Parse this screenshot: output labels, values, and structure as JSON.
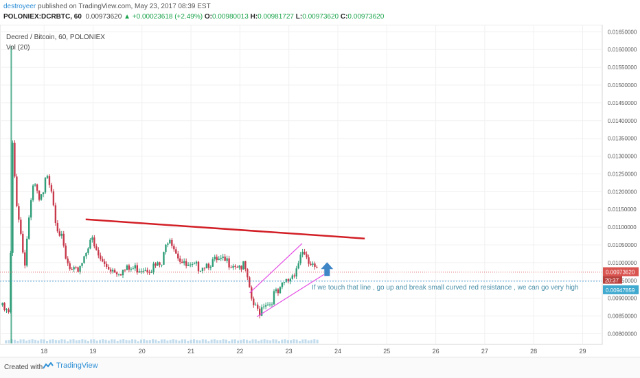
{
  "header": {
    "author": "destroyeer",
    "published": "published on TradingView.com, May 23, 2017 08:39 EST",
    "symbol": "POLONIEX:DCRBTC, 60",
    "price": "0.00973620",
    "change": "▲ +0.00023618 (+2.49%)",
    "o_label": "O:",
    "o_val": "0.00980013",
    "h_label": "H:",
    "h_val": "0.00981727",
    "l_label": "L:",
    "l_val": "0.00973620",
    "c_label": "C:",
    "c_val": "0.00973620"
  },
  "legend": {
    "title": "Decred / Bitcoin, 60, POLONIEX",
    "volume": "Vol (20)"
  },
  "colors": {
    "up": "#2e9d78",
    "down": "#c7384b",
    "resistance": "#d21f26",
    "channel": "#e44ce4",
    "arrow": "#3f86c7",
    "price_line": "#e05050",
    "support_line": "#4ea0d6",
    "price_label_bg": "#d9534f",
    "support_label_bg": "#3fa9cf"
  },
  "chart_data": {
    "type": "candlestick",
    "x_ticks": [
      "18",
      "19",
      "20",
      "21",
      "22",
      "23",
      "24",
      "25",
      "26",
      "27",
      "28",
      "29"
    ],
    "y_ticks": [
      "0.00800000",
      "0.00850000",
      "0.00900000",
      "0.00950000",
      "0.01000000",
      "0.01050000",
      "0.01100000",
      "0.01150000",
      "0.01200000",
      "0.01250000",
      "0.01300000",
      "0.01350000",
      "0.01400000",
      "0.01450000",
      "0.01500000",
      "0.01550000",
      "0.01600000",
      "0.01650000"
    ],
    "ylim": [
      0.0077,
      0.0167
    ],
    "xlim": [
      17.1,
      29.4
    ],
    "price_label": "0.00973620",
    "countdown": "20:37",
    "support_label": "0.00947859",
    "support_level": 0.00947859,
    "current_level": 0.0097362,
    "annotation": "If we touch that line , go up and break small curved red resistance , we can go very high",
    "resistance_line": [
      [
        18.85,
        0.01122
      ],
      [
        24.55,
        0.01068
      ]
    ],
    "channel_lower": [
      [
        22.35,
        0.00848
      ],
      [
        23.72,
        0.00967
      ]
    ],
    "channel_upper": [
      [
        22.2,
        0.00915
      ],
      [
        23.27,
        0.01054
      ]
    ],
    "arrow_at": [
      23.78,
      0.00978
    ],
    "anchors": [
      [
        17.15,
        0.0088
      ],
      [
        17.25,
        0.00865
      ],
      [
        17.3,
        0.0086
      ],
      [
        17.33,
        0.0116
      ],
      [
        17.36,
        0.01345
      ],
      [
        17.42,
        0.012
      ],
      [
        17.5,
        0.0112
      ],
      [
        17.6,
        0.01
      ],
      [
        17.7,
        0.0115
      ],
      [
        17.8,
        0.0123
      ],
      [
        17.9,
        0.0118
      ],
      [
        18.0,
        0.012
      ],
      [
        18.05,
        0.0127
      ],
      [
        18.15,
        0.0122
      ],
      [
        18.25,
        0.0112
      ],
      [
        18.35,
        0.0108
      ],
      [
        18.45,
        0.0101
      ],
      [
        18.55,
        0.0098
      ],
      [
        18.65,
        0.0098
      ],
      [
        18.8,
        0.0102
      ],
      [
        18.95,
        0.0108
      ],
      [
        19.05,
        0.0104
      ],
      [
        19.2,
        0.01005
      ],
      [
        19.4,
        0.0099
      ],
      [
        19.6,
        0.00985
      ],
      [
        19.8,
        0.0099
      ],
      [
        20.0,
        0.00995
      ],
      [
        20.2,
        0.00995
      ],
      [
        20.4,
        0.01
      ],
      [
        20.55,
        0.0109
      ],
      [
        20.7,
        0.0104
      ],
      [
        20.85,
        0.01
      ],
      [
        21.0,
        0.0099
      ],
      [
        21.2,
        0.01
      ],
      [
        21.4,
        0.0101
      ],
      [
        21.6,
        0.0101
      ],
      [
        21.8,
        0.0101
      ],
      [
        22.0,
        0.01
      ],
      [
        22.1,
        0.00995
      ],
      [
        22.2,
        0.0092
      ],
      [
        22.3,
        0.0088
      ],
      [
        22.4,
        0.0087
      ],
      [
        22.5,
        0.009
      ],
      [
        22.6,
        0.0089
      ],
      [
        22.7,
        0.0092
      ],
      [
        22.8,
        0.0092
      ],
      [
        22.9,
        0.0095
      ],
      [
        23.0,
        0.0096
      ],
      [
        23.1,
        0.0098
      ],
      [
        23.2,
        0.0101
      ],
      [
        23.27,
        0.0105
      ],
      [
        23.35,
        0.0101
      ],
      [
        23.45,
        0.01
      ],
      [
        23.55,
        0.00985
      ],
      [
        23.6,
        0.00974
      ]
    ],
    "volume": {
      "spike_day": 17.33,
      "spike_level": 0.0161,
      "baseline_level": 0.00773,
      "typical_level": 0.00785
    }
  }
}
